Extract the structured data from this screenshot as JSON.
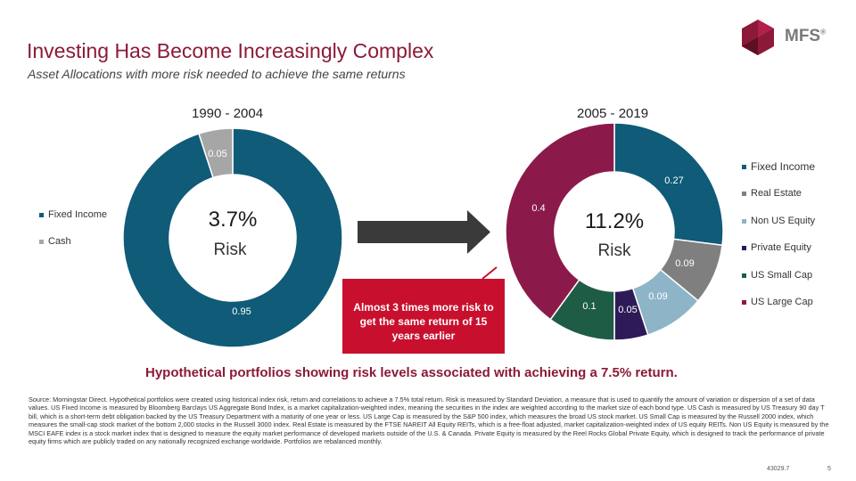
{
  "slide": {
    "title": "Investing Has Become Increasingly Complex",
    "subtitle": "Asset Allocations with more risk needed to achieve the same returns",
    "logo_text": "MFS",
    "logo_mark": "®",
    "bottom_heading": "Hypothetical portfolios showing risk levels associated with achieving a 7.5% return.",
    "source": "Source: Morningstar Direct. Hypothetical portfolios were created using historical index risk, return and correlations to achieve a 7.5% total return. Risk is measured by Standard Deviation, a measure that is used to quantify the amount of variation or dispersion of a set of data values. US Fixed Income is measured by Bloomberg Barclays US Aggregate Bond Index, is a market capitalization-weighted index, meaning the securities in the index are weighted according to the market size of each bond type. US Cash is measured by US Treasury 90 day T bill, which is a short-term debt obligation backed by the US Treasury Department with a maturity of one year or less. US Large Cap is measured by the S&P 500 index, which measures the broad US stock market. US Small Cap is measured by the Russell 2000 index, which measures the small-cap stock market of the bottom 2,000 stocks in the Russell 3000 index. Real Estate is measured by the FTSE NAREIT All Equity REITs, which is a free-float adjusted, market capitalization-weighted index of US equity REITs. Non US Equity is measured by the MSCI EAFE index is a stock market index that is designed to measure the equity market performance of developed markets outside of the U.S. & Canada. Private Equity is measured by the Reel Rocks Global Private Equity, which is designed to track the performance of private equity firms which are publicly traded on any nationally recognized exchange worldwide. Portfolios are rebalanced monthly.",
    "page_code": "43029.7",
    "page_number": "5"
  },
  "callout": {
    "text": "Almost 3 times more risk to get the same return of 15 years earlier"
  },
  "colors": {
    "fixed_income": "#0f5b78",
    "cash": "#a6a6a6",
    "real_estate": "#7f7f7f",
    "non_us_equity": "#8eb4c8",
    "private_equity": "#2e1a57",
    "us_small_cap": "#1f5c45",
    "us_large_cap": "#8b1a4a",
    "accent": "#c8102e"
  },
  "chart_data": [
    {
      "type": "pie",
      "title": "1990 - 2004",
      "center_value": "3.7%",
      "center_label": "Risk",
      "legend_position": "left",
      "slices": [
        {
          "name": "Fixed Income",
          "value": 0.95,
          "label": "0.95",
          "color_key": "fixed_income"
        },
        {
          "name": "Cash",
          "value": 0.05,
          "label": "0.05",
          "color_key": "cash"
        }
      ]
    },
    {
      "type": "pie",
      "title": "2005 - 2019",
      "center_value": "11.2%",
      "center_label": "Risk",
      "legend_position": "right",
      "slices": [
        {
          "name": "Fixed Income",
          "value": 0.27,
          "label": "0.27",
          "color_key": "fixed_income"
        },
        {
          "name": "Real Estate",
          "value": 0.09,
          "label": "0.09",
          "color_key": "real_estate"
        },
        {
          "name": "Non US Equity",
          "value": 0.09,
          "label": "0.09",
          "color_key": "non_us_equity"
        },
        {
          "name": "Private Equity",
          "value": 0.05,
          "label": "0.05",
          "color_key": "private_equity"
        },
        {
          "name": "US Small Cap",
          "value": 0.1,
          "label": "0.1",
          "color_key": "us_small_cap"
        },
        {
          "name": "US Large Cap",
          "value": 0.4,
          "label": "0.4",
          "color_key": "us_large_cap"
        }
      ]
    }
  ]
}
